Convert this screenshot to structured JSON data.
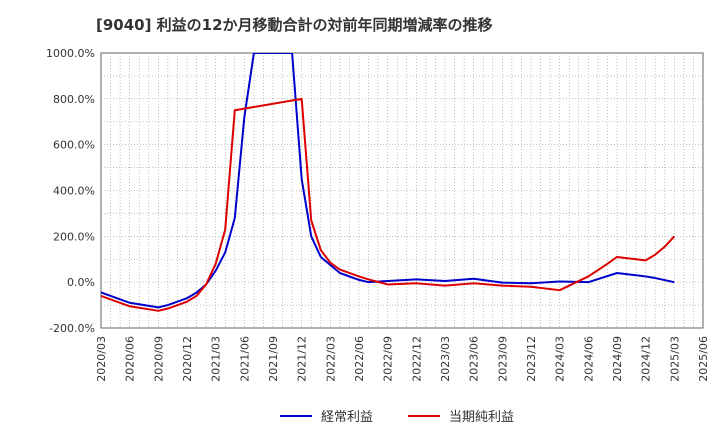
{
  "chart_data": {
    "type": "line",
    "title": "[9040]  利益の12か月移動合計の対前年同期増減率の推移",
    "xlabel": "",
    "ylabel": "",
    "ylim": [
      -200,
      1000
    ],
    "grid": true,
    "legend_position": "bottom-center",
    "y_ticks": [
      1000,
      800,
      600,
      400,
      200,
      0,
      -200
    ],
    "y_tick_labels": [
      "1000.0%",
      "800.0%",
      "600.0%",
      "400.0%",
      "200.0%",
      "0.0%",
      "-200.0%"
    ],
    "x_tick_labels": [
      "2020/03",
      "2020/06",
      "2020/09",
      "2020/12",
      "2021/03",
      "2021/06",
      "2021/09",
      "2021/12",
      "2022/03",
      "2022/06",
      "2022/09",
      "2022/12",
      "2023/03",
      "2023/06",
      "2023/09",
      "2023/12",
      "2024/03",
      "2024/06",
      "2024/09",
      "2024/12",
      "2025/03",
      "2025/06"
    ],
    "x_start": "2020/03",
    "x_end": "2025/06",
    "series": [
      {
        "name": "経常利益",
        "color": "#0000cc",
        "points": [
          [
            "2020/03",
            -45
          ],
          [
            "2020/06",
            -90
          ],
          [
            "2020/09",
            -110
          ],
          [
            "2020/10",
            -100
          ],
          [
            "2020/12",
            -70
          ],
          [
            "2021/01",
            -45
          ],
          [
            "2021/02",
            -10
          ],
          [
            "2021/03",
            50
          ],
          [
            "2021/04",
            130
          ],
          [
            "2021/05",
            280
          ],
          [
            "2021/06",
            720
          ],
          [
            "2021/07",
            1000
          ],
          [
            "2021/11",
            1000
          ],
          [
            "2021/12",
            450
          ],
          [
            "2022/01",
            200
          ],
          [
            "2022/02",
            110
          ],
          [
            "2022/03",
            75
          ],
          [
            "2022/04",
            40
          ],
          [
            "2022/06",
            10
          ],
          [
            "2022/07",
            0
          ],
          [
            "2022/09",
            5
          ],
          [
            "2022/12",
            12
          ],
          [
            "2023/03",
            5
          ],
          [
            "2023/06",
            15
          ],
          [
            "2023/09",
            -2
          ],
          [
            "2023/12",
            -5
          ],
          [
            "2024/03",
            3
          ],
          [
            "2024/06",
            0
          ],
          [
            "2024/09",
            40
          ],
          [
            "2024/12",
            25
          ],
          [
            "2025/01",
            18
          ],
          [
            "2025/03",
            0
          ]
        ]
      },
      {
        "name": "当期純利益",
        "color": "#dd0000",
        "points": [
          [
            "2020/03",
            -60
          ],
          [
            "2020/06",
            -105
          ],
          [
            "2020/09",
            -125
          ],
          [
            "2020/10",
            -115
          ],
          [
            "2020/12",
            -85
          ],
          [
            "2021/01",
            -60
          ],
          [
            "2021/02",
            -10
          ],
          [
            "2021/03",
            80
          ],
          [
            "2021/04",
            230
          ],
          [
            "2021/05",
            750
          ],
          [
            "2021/12",
            800
          ],
          [
            "2022/01",
            270
          ],
          [
            "2022/02",
            140
          ],
          [
            "2022/03",
            85
          ],
          [
            "2022/04",
            55
          ],
          [
            "2022/06",
            25
          ],
          [
            "2022/07",
            12
          ],
          [
            "2022/09",
            -10
          ],
          [
            "2022/12",
            -5
          ],
          [
            "2023/03",
            -15
          ],
          [
            "2023/06",
            -5
          ],
          [
            "2023/09",
            -15
          ],
          [
            "2023/12",
            -20
          ],
          [
            "2024/03",
            -35
          ],
          [
            "2024/06",
            25
          ],
          [
            "2024/08",
            80
          ],
          [
            "2024/09",
            110
          ],
          [
            "2024/12",
            95
          ],
          [
            "2025/01",
            120
          ],
          [
            "2025/02",
            155
          ],
          [
            "2025/03",
            200
          ]
        ]
      }
    ]
  }
}
